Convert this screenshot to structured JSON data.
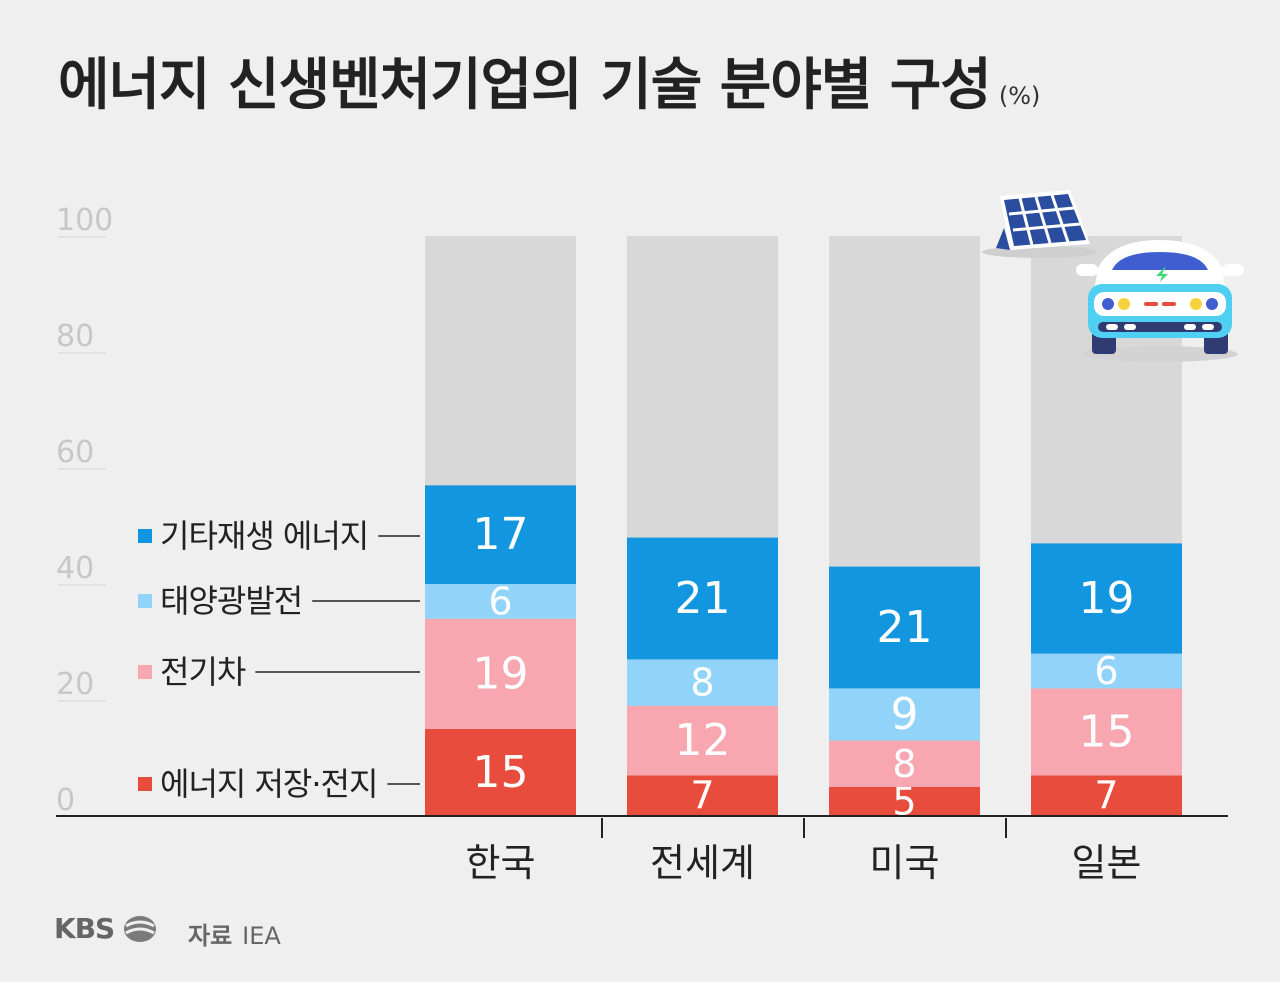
{
  "header": {
    "title": "에너지 신생벤처기업의 기술 분야별 구성",
    "unit": "(%)"
  },
  "footer": {
    "logo": "KBS",
    "source_label": "자료",
    "source_value": "IEA"
  },
  "chart_data": {
    "type": "bar",
    "stacked": true,
    "title": "에너지 신생벤처기업의 기술 분야별 구성",
    "ylim": [
      0,
      100
    ],
    "yticks": [
      0,
      20,
      40,
      60,
      80,
      100
    ],
    "categories": [
      "한국",
      "전세계",
      "미국",
      "일본"
    ],
    "series": [
      {
        "name": "에너지 저장·전지",
        "color": "#e84c3d",
        "values": [
          15,
          7,
          5,
          7
        ]
      },
      {
        "name": "전기차",
        "color": "#f8a6b0",
        "values": [
          19,
          12,
          8,
          15
        ]
      },
      {
        "name": "태양광발전",
        "color": "#92d4f9",
        "values": [
          6,
          8,
          9,
          6
        ]
      },
      {
        "name": "기타재생 에너지",
        "color": "#1396e0",
        "values": [
          17,
          21,
          21,
          19
        ]
      }
    ],
    "remainder_color": "#d8d8d8",
    "legend_placement": "left",
    "grid": false
  },
  "colors": {
    "background": "#efefef",
    "axis": "#222222",
    "tick_label": "#c7c7c7",
    "solar_panel": "#2a4da0",
    "car_body": "#4fd0f2"
  },
  "icons": [
    "solar-panel-icon",
    "electric-car-icon",
    "kbs-logo-icon"
  ]
}
